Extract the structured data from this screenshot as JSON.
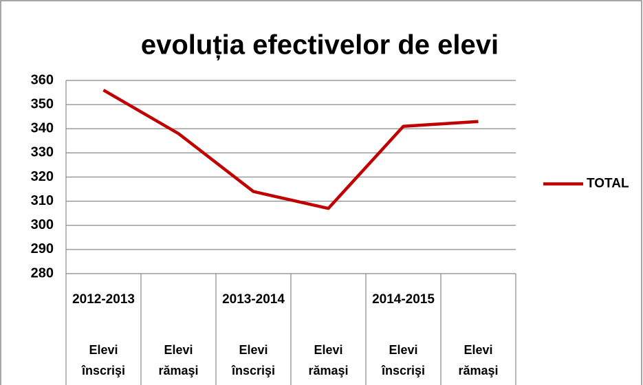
{
  "chart_data": {
    "type": "line",
    "title": "evoluția efectivelor de elevi",
    "categories": [
      "Elevi înscrişi",
      "Elevi rămaşi",
      "Elevi înscrişi",
      "Elevi rămaşi",
      "Elevi înscrişi",
      "Elevi rămaşi"
    ],
    "category_groups": [
      "2012-2013",
      "2013-2014",
      "2014-2015"
    ],
    "series": [
      {
        "name": "TOTAL",
        "color": "#c00000",
        "values": [
          356,
          338,
          314,
          307,
          341,
          343
        ]
      }
    ],
    "ylim": [
      280,
      360
    ],
    "yticks": [
      280,
      290,
      300,
      310,
      320,
      330,
      340,
      350,
      360
    ],
    "grid": true,
    "legend": "right"
  }
}
